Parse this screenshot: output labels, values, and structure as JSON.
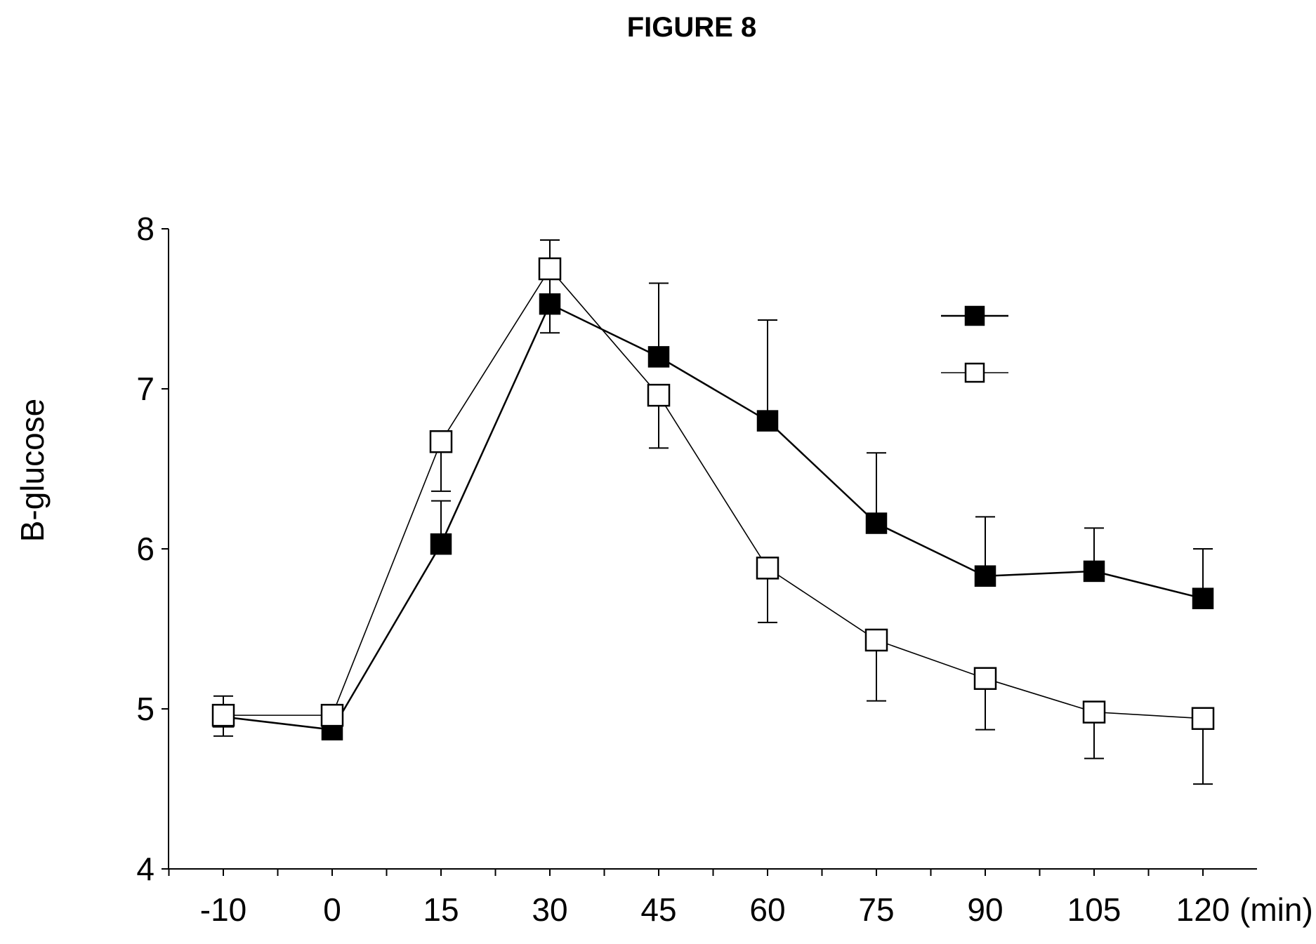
{
  "figure": {
    "title": "FIGURE 8"
  },
  "chart_data": {
    "type": "line",
    "title": "FIGURE 8",
    "xlabel": "",
    "ylabel": "B-glucose",
    "x_unit_label": "(min)",
    "categories": [
      "-10",
      "0",
      "15",
      "30",
      "45",
      "60",
      "75",
      "90",
      "105",
      "120"
    ],
    "y_ticks": [
      "4",
      "5",
      "6",
      "7",
      "8"
    ],
    "ylim": [
      4,
      8
    ],
    "grid": false,
    "legend": "top-right",
    "series": [
      {
        "marker": "filled-square",
        "color": "#000000",
        "values": [
          4.95,
          4.87,
          6.03,
          7.53,
          7.2,
          6.8,
          6.16,
          5.83,
          5.86,
          5.69
        ],
        "error_upper": [
          5.08,
          4.87,
          6.3,
          7.93,
          7.66,
          7.43,
          6.6,
          6.2,
          6.13,
          6.0
        ]
      },
      {
        "marker": "open-square",
        "color": "#000000",
        "values": [
          4.96,
          4.96,
          6.67,
          7.75,
          6.96,
          5.88,
          5.43,
          5.19,
          4.98,
          4.94
        ],
        "error_lower": [
          4.83,
          4.96,
          6.36,
          7.35,
          6.63,
          5.54,
          5.05,
          4.87,
          4.69,
          4.53
        ]
      }
    ]
  }
}
